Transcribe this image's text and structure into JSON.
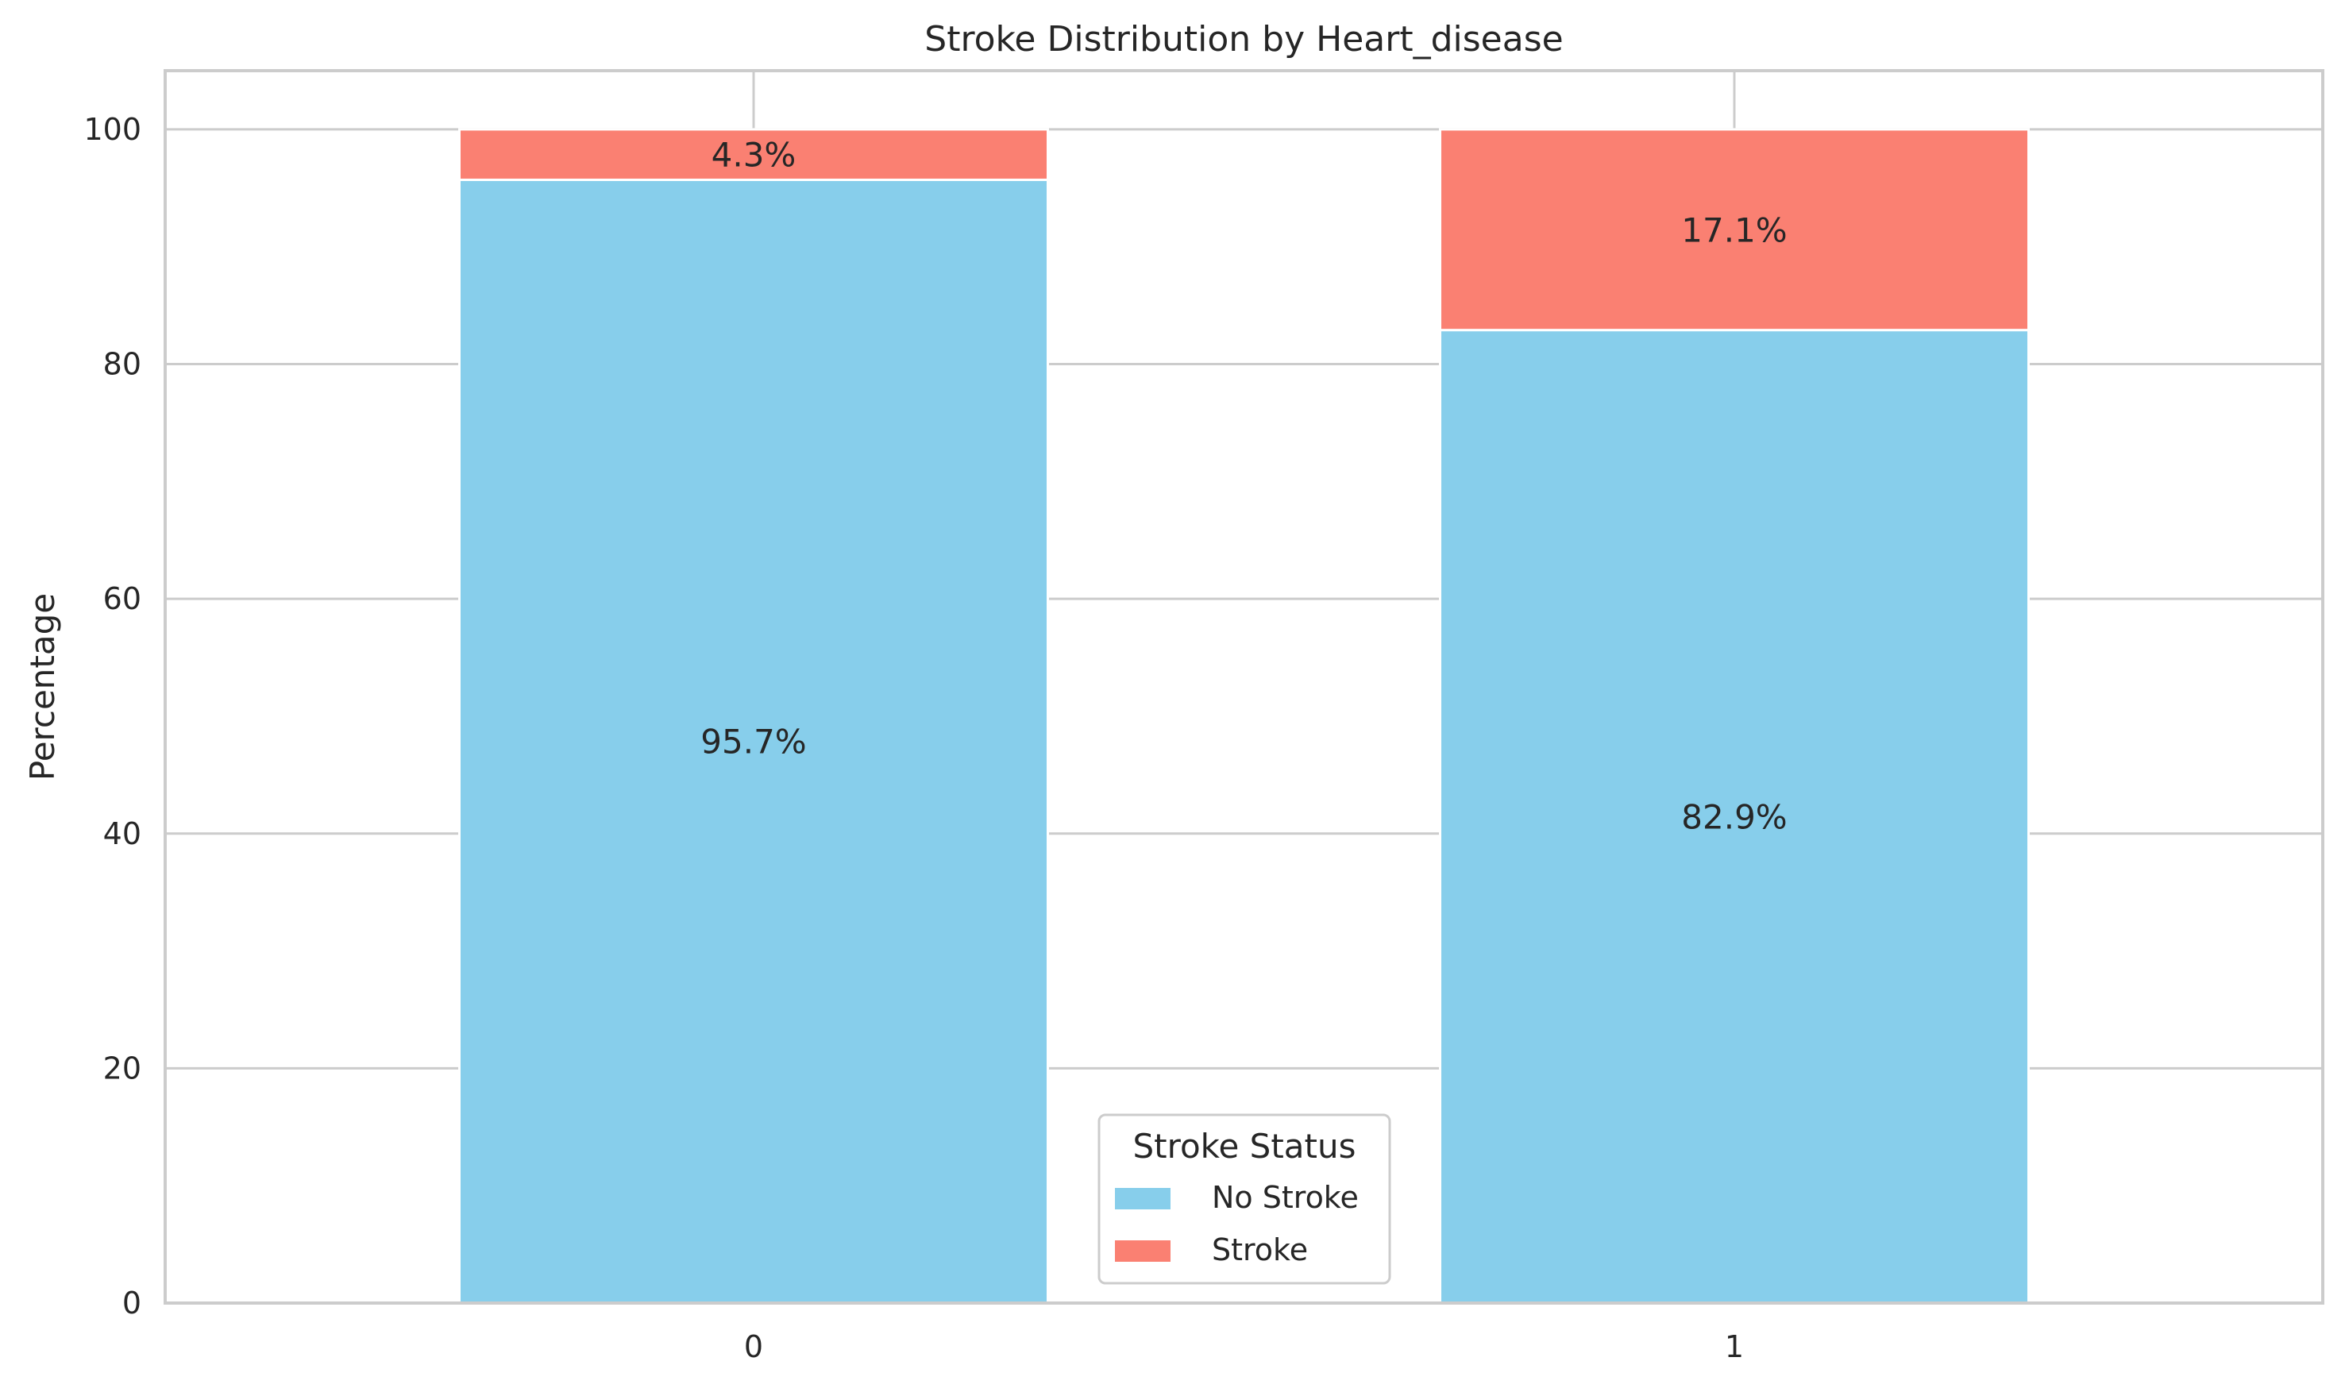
{
  "chart_data": {
    "type": "bar",
    "stacked": true,
    "title": "Stroke Distribution by Heart_disease",
    "xlabel": "",
    "ylabel": "Percentage",
    "categories": [
      "0",
      "1"
    ],
    "series": [
      {
        "name": "No Stroke",
        "values": [
          95.7,
          82.9
        ],
        "labels": [
          "95.7%",
          "82.9%"
        ],
        "color": "#87CEEB"
      },
      {
        "name": "Stroke",
        "values": [
          4.3,
          17.1
        ],
        "labels": [
          "4.3%",
          "17.1%"
        ],
        "color": "#FA8072"
      }
    ],
    "ylim": [
      0,
      105
    ],
    "yticks": [
      0,
      20,
      40,
      60,
      80,
      100
    ],
    "grid": true,
    "legend": {
      "title": "Stroke Status",
      "placement": "bottom-center"
    }
  }
}
